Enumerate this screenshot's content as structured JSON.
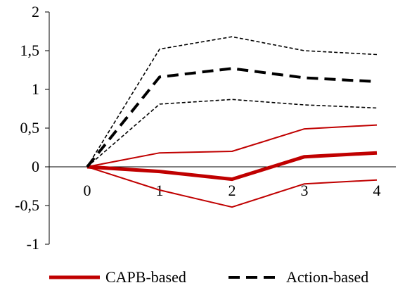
{
  "chart_data": {
    "type": "line",
    "title": "",
    "xlabel": "",
    "ylabel": "",
    "x": [
      0,
      1,
      2,
      3,
      4
    ],
    "x_tick_labels": [
      "0",
      "1",
      "2",
      "3",
      "4"
    ],
    "y_tick_labels": [
      "-1",
      "-0,5",
      "0",
      "0,5",
      "1",
      "1,5",
      "2"
    ],
    "y_ticks": [
      -1,
      -0.5,
      0,
      0.5,
      1,
      1.5,
      2
    ],
    "ylim": [
      -1,
      2
    ],
    "grid": false,
    "legend_position": "bottom",
    "series": [
      {
        "name": "CAPB-based",
        "values": [
          0,
          -0.06,
          -0.16,
          0.13,
          0.18
        ],
        "color": "#c00000",
        "style": "solid",
        "weight": "thick",
        "legend": true
      },
      {
        "values": [
          0,
          0.18,
          0.2,
          0.49,
          0.54
        ],
        "color": "#c00000",
        "style": "solid",
        "weight": "thin",
        "legend": false
      },
      {
        "values": [
          0,
          -0.3,
          -0.52,
          -0.22,
          -0.17
        ],
        "color": "#c00000",
        "style": "solid",
        "weight": "thin",
        "legend": false
      },
      {
        "name": "Action-based",
        "values": [
          0,
          1.16,
          1.27,
          1.15,
          1.1
        ],
        "color": "#000000",
        "style": "dashed",
        "weight": "thick",
        "legend": true
      },
      {
        "values": [
          0,
          1.52,
          1.68,
          1.5,
          1.45
        ],
        "color": "#000000",
        "style": "dashed",
        "weight": "thin",
        "legend": false
      },
      {
        "values": [
          0,
          0.81,
          0.87,
          0.8,
          0.76
        ],
        "color": "#000000",
        "style": "dashed",
        "weight": "thin",
        "legend": false
      }
    ]
  }
}
